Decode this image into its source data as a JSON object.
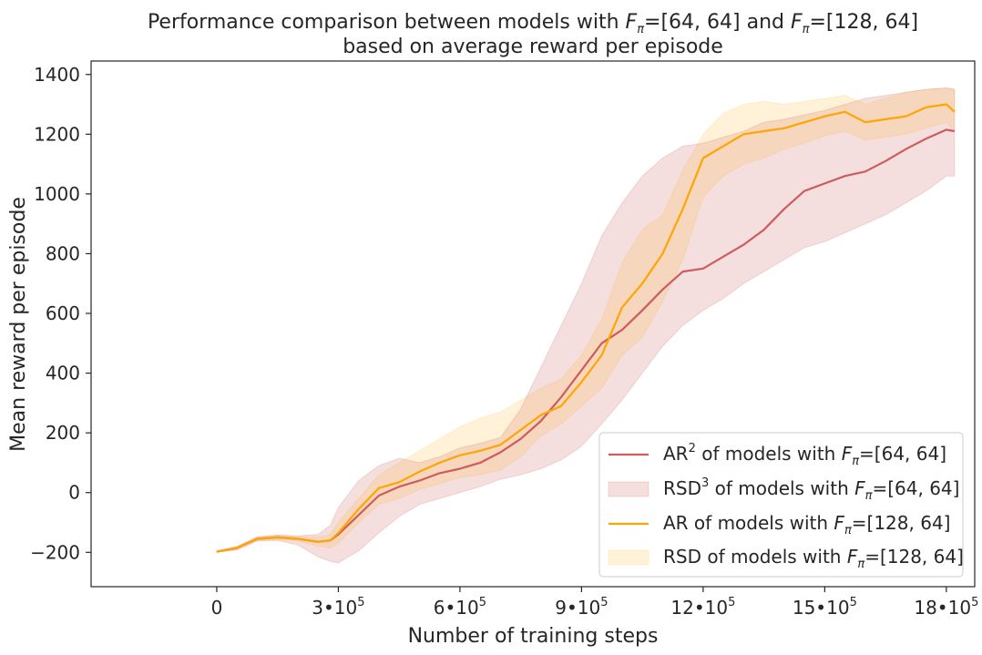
{
  "chart_data": {
    "type": "line",
    "title": {
      "line1_prefix": "Performance comparison between models with ",
      "line1_mid": " and ",
      "spec_a": "=[64, 64]",
      "spec_b": "=[128, 64]",
      "line2": "based on average reward per episode"
    },
    "symbol": {
      "base": "F",
      "sub": "π"
    },
    "xlabel": "Number of training steps",
    "ylabel": "Mean reward per episode",
    "xlim": [
      -310000,
      1870000
    ],
    "ylim": [
      -315,
      1445
    ],
    "xticks": [
      {
        "value": 0,
        "label": "0",
        "exp": ""
      },
      {
        "value": 300000,
        "label": "3•10",
        "exp": "5"
      },
      {
        "value": 600000,
        "label": "6•10",
        "exp": "5"
      },
      {
        "value": 900000,
        "label": "9•10",
        "exp": "5"
      },
      {
        "value": 1200000,
        "label": "12•10",
        "exp": "5"
      },
      {
        "value": 1500000,
        "label": "15•10",
        "exp": "5"
      },
      {
        "value": 1800000,
        "label": "18•10",
        "exp": "5"
      }
    ],
    "yticks": [
      {
        "value": -200,
        "label": "−200"
      },
      {
        "value": 0,
        "label": "0"
      },
      {
        "value": 200,
        "label": "200"
      },
      {
        "value": 400,
        "label": "400"
      },
      {
        "value": 600,
        "label": "600"
      },
      {
        "value": 800,
        "label": "800"
      },
      {
        "value": 1000,
        "label": "1000"
      },
      {
        "value": 1200,
        "label": "1200"
      },
      {
        "value": 1400,
        "label": "1400"
      }
    ],
    "grid": false,
    "legend_position": "lower-right",
    "series": [
      {
        "id": "ar_64_64",
        "kind": "line",
        "color": "#cd5c5c",
        "legend": {
          "prefix": "AR",
          "sup": "2",
          "suffix": " of models with ",
          "spec": "=[64, 64]"
        },
        "x": [
          0,
          50000,
          100000,
          150000,
          200000,
          250000,
          280000,
          300000,
          350000,
          400000,
          450000,
          500000,
          550000,
          600000,
          650000,
          700000,
          750000,
          800000,
          850000,
          900000,
          950000,
          1000000,
          1050000,
          1100000,
          1150000,
          1200000,
          1250000,
          1300000,
          1350000,
          1400000,
          1450000,
          1500000,
          1550000,
          1600000,
          1650000,
          1700000,
          1750000,
          1800000,
          1820000
        ],
        "y": [
          -198,
          -185,
          -155,
          -150,
          -155,
          -165,
          -160,
          -140,
          -75,
          -10,
          20,
          40,
          65,
          80,
          100,
          135,
          180,
          240,
          320,
          410,
          500,
          545,
          610,
          680,
          740,
          750,
          790,
          830,
          880,
          950,
          1010,
          1035,
          1060,
          1075,
          1110,
          1150,
          1185,
          1215,
          1210
        ]
      },
      {
        "id": "rsd_64_64",
        "kind": "band",
        "color": "#cd5c5c",
        "opacity": 0.2,
        "legend": {
          "prefix": "RSD",
          "sup": "3",
          "suffix": " of models with ",
          "spec": "=[64, 64]"
        },
        "x": [
          0,
          50000,
          100000,
          150000,
          200000,
          250000,
          280000,
          300000,
          350000,
          400000,
          450000,
          500000,
          550000,
          600000,
          650000,
          700000,
          750000,
          800000,
          850000,
          900000,
          950000,
          1000000,
          1050000,
          1100000,
          1150000,
          1200000,
          1250000,
          1300000,
          1350000,
          1400000,
          1450000,
          1500000,
          1550000,
          1600000,
          1650000,
          1700000,
          1750000,
          1800000,
          1820000
        ],
        "upper": [
          -195,
          -180,
          -148,
          -142,
          -145,
          -140,
          -110,
          -50,
          40,
          90,
          115,
          100,
          120,
          150,
          165,
          185,
          280,
          420,
          560,
          700,
          860,
          970,
          1060,
          1120,
          1160,
          1170,
          1190,
          1210,
          1240,
          1250,
          1265,
          1280,
          1300,
          1320,
          1330,
          1340,
          1350,
          1355,
          1350
        ],
        "lower": [
          -200,
          -192,
          -162,
          -160,
          -175,
          -215,
          -230,
          -235,
          -195,
          -135,
          -80,
          -40,
          -20,
          0,
          20,
          45,
          60,
          80,
          110,
          155,
          230,
          310,
          400,
          490,
          560,
          610,
          650,
          700,
          740,
          780,
          820,
          840,
          870,
          900,
          930,
          970,
          1010,
          1060,
          1060
        ]
      },
      {
        "id": "ar_128_64",
        "kind": "line",
        "color": "#ffa500",
        "legend": {
          "prefix": "AR",
          "sup": "",
          "suffix": " of models with ",
          "spec": "=[128, 64]"
        },
        "x": [
          0,
          50000,
          100000,
          150000,
          200000,
          250000,
          280000,
          300000,
          350000,
          400000,
          450000,
          500000,
          550000,
          600000,
          650000,
          700000,
          750000,
          800000,
          850000,
          900000,
          950000,
          1000000,
          1050000,
          1100000,
          1150000,
          1200000,
          1250000,
          1300000,
          1350000,
          1400000,
          1450000,
          1500000,
          1550000,
          1600000,
          1650000,
          1700000,
          1750000,
          1800000,
          1820000
        ],
        "y": [
          -198,
          -185,
          -155,
          -150,
          -155,
          -165,
          -160,
          -135,
          -55,
          15,
          35,
          70,
          100,
          125,
          140,
          160,
          210,
          260,
          290,
          370,
          460,
          620,
          700,
          800,
          950,
          1120,
          1160,
          1200,
          1210,
          1220,
          1240,
          1260,
          1275,
          1240,
          1250,
          1260,
          1290,
          1300,
          1275
        ]
      },
      {
        "id": "rsd_128_64",
        "kind": "band",
        "color": "#ffa500",
        "opacity": 0.15,
        "legend": {
          "prefix": "RSD",
          "sup": "",
          "suffix": " of models with ",
          "spec": "=[128, 64]"
        },
        "x": [
          0,
          50000,
          100000,
          150000,
          200000,
          250000,
          280000,
          300000,
          350000,
          400000,
          450000,
          500000,
          550000,
          600000,
          650000,
          700000,
          750000,
          800000,
          850000,
          900000,
          950000,
          1000000,
          1050000,
          1100000,
          1150000,
          1200000,
          1250000,
          1300000,
          1350000,
          1400000,
          1450000,
          1500000,
          1550000,
          1600000,
          1650000,
          1700000,
          1750000,
          1800000,
          1820000
        ],
        "upper": [
          -195,
          -182,
          -150,
          -143,
          -147,
          -150,
          -140,
          -100,
          -20,
          60,
          100,
          140,
          180,
          220,
          250,
          270,
          310,
          350,
          380,
          460,
          580,
          770,
          880,
          930,
          1080,
          1200,
          1270,
          1300,
          1310,
          1300,
          1310,
          1320,
          1330,
          1300,
          1320,
          1340,
          1350,
          1355,
          1350
        ],
        "lower": [
          -200,
          -190,
          -160,
          -158,
          -162,
          -180,
          -185,
          -170,
          -100,
          -40,
          -20,
          10,
          30,
          50,
          60,
          75,
          120,
          190,
          230,
          290,
          350,
          460,
          520,
          640,
          780,
          990,
          1060,
          1100,
          1120,
          1150,
          1170,
          1195,
          1210,
          1180,
          1190,
          1200,
          1220,
          1240,
          1210
        ]
      }
    ]
  }
}
